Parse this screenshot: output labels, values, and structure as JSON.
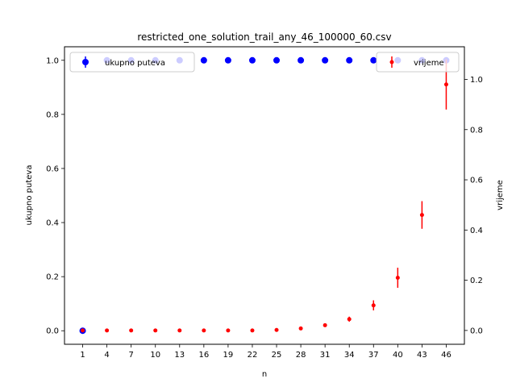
{
  "chart_data": {
    "type": "scatter",
    "title": "restricted_one_solution_trail_any_46_100000_60.csv",
    "xlabel": "n",
    "ylabel_left": "ukupno puteva",
    "ylabel_right": "vrijeme",
    "x": [
      1,
      4,
      7,
      10,
      13,
      16,
      19,
      22,
      25,
      28,
      31,
      34,
      37,
      40,
      43,
      46
    ],
    "xtick_labels": [
      "1",
      "4",
      "7",
      "10",
      "13",
      "16",
      "19",
      "22",
      "25",
      "28",
      "31",
      "34",
      "37",
      "40",
      "43",
      "46"
    ],
    "left_axis": {
      "ylim": [
        -0.05,
        1.05
      ],
      "ticks": [
        0.0,
        0.2,
        0.4,
        0.6,
        0.8,
        1.0
      ],
      "tick_labels": [
        "0.0",
        "0.2",
        "0.4",
        "0.6",
        "0.8",
        "1.0"
      ]
    },
    "right_axis": {
      "ylim": [
        -0.055,
        1.13
      ],
      "ticks": [
        0.0,
        0.2,
        0.4,
        0.6,
        0.8,
        1.0
      ],
      "tick_labels": [
        "0.0",
        "0.2",
        "0.4",
        "0.6",
        "0.8",
        "1.0"
      ]
    },
    "series": [
      {
        "name": "ukupno puteva",
        "axis": "left",
        "color": "#0000ff",
        "values": [
          0,
          1,
          1,
          1,
          1,
          1,
          1,
          1,
          1,
          1,
          1,
          1,
          1,
          1,
          1,
          1
        ],
        "errors": [
          0,
          0,
          0,
          0,
          0,
          0,
          0,
          0,
          0,
          0,
          0,
          0,
          0,
          0,
          0,
          0
        ]
      },
      {
        "name": "vrijeme",
        "axis": "right",
        "color": "#ff0000",
        "values": [
          0.0,
          0.0,
          0.0,
          0.0,
          0.0,
          0.0,
          0.0,
          0.0,
          0.002,
          0.008,
          0.021,
          0.045,
          0.1,
          0.21,
          0.46,
          0.98
        ],
        "errors": [
          0.0,
          0.0,
          0.0,
          0.0,
          0.0,
          0.0,
          0.0,
          0.0,
          0.001,
          0.002,
          0.003,
          0.01,
          0.02,
          0.04,
          0.055,
          0.1
        ]
      }
    ],
    "legend_left": {
      "placement": "upper-left",
      "label": "ukupno puteva"
    },
    "legend_right": {
      "placement": "upper-right",
      "label": "vrijeme"
    },
    "grid": false
  }
}
